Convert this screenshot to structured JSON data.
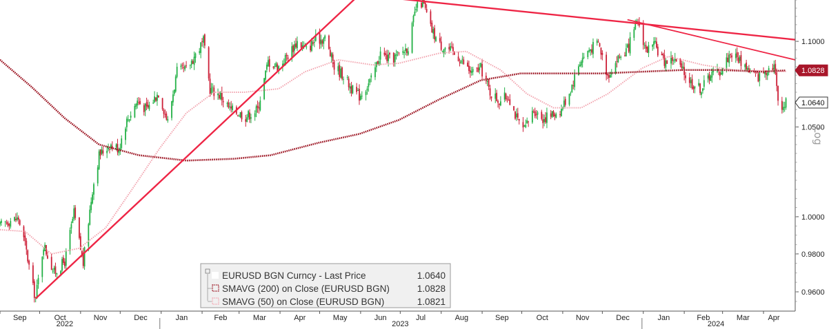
{
  "chart_data": {
    "type": "candlestick",
    "scale": "log",
    "scale_label": "Log",
    "ylim": [
      0.95,
      1.125
    ],
    "y_ticks": [
      0.96,
      0.98,
      1.0,
      1.05,
      1.1
    ],
    "y_tick_labels": [
      "0.9600",
      "0.9800",
      "1.0000",
      "1.0500",
      "1.1000"
    ],
    "x_start": "2022-09-01",
    "x_end": "2024-04-25",
    "month_ticks": [
      {
        "label": "Sep",
        "date": "2022-09-01"
      },
      {
        "label": "Oct",
        "date": "2022-10-01"
      },
      {
        "label": "Nov",
        "date": "2022-11-01"
      },
      {
        "label": "Dec",
        "date": "2022-12-01"
      },
      {
        "label": "Jan",
        "date": "2023-01-01"
      },
      {
        "label": "Feb",
        "date": "2023-02-01"
      },
      {
        "label": "Mar",
        "date": "2023-03-01"
      },
      {
        "label": "Apr",
        "date": "2023-04-01"
      },
      {
        "label": "May",
        "date": "2023-05-01"
      },
      {
        "label": "Jun",
        "date": "2023-06-01"
      },
      {
        "label": "Jul",
        "date": "2023-07-01"
      },
      {
        "label": "Aug",
        "date": "2023-08-01"
      },
      {
        "label": "Sep",
        "date": "2023-09-01"
      },
      {
        "label": "Oct",
        "date": "2023-10-01"
      },
      {
        "label": "Nov",
        "date": "2023-11-01"
      },
      {
        "label": "Dec",
        "date": "2023-12-01"
      },
      {
        "label": "Jan",
        "date": "2024-01-01"
      },
      {
        "label": "Feb",
        "date": "2024-02-01"
      },
      {
        "label": "Mar",
        "date": "2024-03-01"
      },
      {
        "label": "Apr",
        "date": "2024-04-01"
      }
    ],
    "year_labels": [
      {
        "label": "2022",
        "date": "2022-10-20"
      },
      {
        "label": "2023",
        "date": "2023-07-01"
      },
      {
        "label": "2024",
        "date": "2024-02-25"
      }
    ],
    "year_dividers": [
      "2022-12-31",
      "2023-12-31"
    ],
    "price_path": [
      [
        "2022-09-01",
        0.995
      ],
      [
        "2022-09-08",
        0.998
      ],
      [
        "2022-09-15",
        0.999
      ],
      [
        "2022-09-20",
        0.985
      ],
      [
        "2022-09-26",
        0.962
      ],
      [
        "2022-09-28",
        0.957
      ],
      [
        "2022-10-04",
        0.985
      ],
      [
        "2022-10-12",
        0.97
      ],
      [
        "2022-10-20",
        0.976
      ],
      [
        "2022-10-27",
        1.002
      ],
      [
        "2022-11-03",
        0.975
      ],
      [
        "2022-11-10",
        1.015
      ],
      [
        "2022-11-15",
        1.034
      ],
      [
        "2022-11-23",
        1.04
      ],
      [
        "2022-11-30",
        1.038
      ],
      [
        "2022-12-05",
        1.052
      ],
      [
        "2022-12-14",
        1.065
      ],
      [
        "2022-12-21",
        1.06
      ],
      [
        "2022-12-30",
        1.07
      ],
      [
        "2023-01-06",
        1.053
      ],
      [
        "2023-01-13",
        1.082
      ],
      [
        "2023-01-20",
        1.083
      ],
      [
        "2023-01-26",
        1.091
      ],
      [
        "2023-02-02",
        1.1
      ],
      [
        "2023-02-07",
        1.072
      ],
      [
        "2023-02-15",
        1.068
      ],
      [
        "2023-02-22",
        1.06
      ],
      [
        "2023-03-01",
        1.058
      ],
      [
        "2023-03-06",
        1.056
      ],
      [
        "2023-03-15",
        1.06
      ],
      [
        "2023-03-23",
        1.088
      ],
      [
        "2023-03-31",
        1.085
      ],
      [
        "2023-04-07",
        1.092
      ],
      [
        "2023-04-14",
        1.1
      ],
      [
        "2023-04-21",
        1.095
      ],
      [
        "2023-04-28",
        1.101
      ],
      [
        "2023-05-05",
        1.102
      ],
      [
        "2023-05-12",
        1.085
      ],
      [
        "2023-05-19",
        1.08
      ],
      [
        "2023-05-26",
        1.071
      ],
      [
        "2023-05-31",
        1.068
      ],
      [
        "2023-06-09",
        1.077
      ],
      [
        "2023-06-16",
        1.093
      ],
      [
        "2023-06-23",
        1.089
      ],
      [
        "2023-06-30",
        1.092
      ],
      [
        "2023-07-07",
        1.097
      ],
      [
        "2023-07-13",
        1.12
      ],
      [
        "2023-07-18",
        1.124
      ],
      [
        "2023-07-24",
        1.108
      ],
      [
        "2023-07-31",
        1.098
      ],
      [
        "2023-08-07",
        1.095
      ],
      [
        "2023-08-15",
        1.09
      ],
      [
        "2023-08-24",
        1.081
      ],
      [
        "2023-08-31",
        1.084
      ],
      [
        "2023-09-07",
        1.07
      ],
      [
        "2023-09-14",
        1.065
      ],
      [
        "2023-09-21",
        1.068
      ],
      [
        "2023-09-28",
        1.053
      ],
      [
        "2023-10-03",
        1.048
      ],
      [
        "2023-10-10",
        1.06
      ],
      [
        "2023-10-17",
        1.055
      ],
      [
        "2023-10-24",
        1.057
      ],
      [
        "2023-10-31",
        1.06
      ],
      [
        "2023-11-07",
        1.072
      ],
      [
        "2023-11-14",
        1.088
      ],
      [
        "2023-11-21",
        1.095
      ],
      [
        "2023-11-28",
        1.099
      ],
      [
        "2023-12-05",
        1.08
      ],
      [
        "2023-12-13",
        1.09
      ],
      [
        "2023-12-20",
        1.095
      ],
      [
        "2023-12-28",
        1.112
      ],
      [
        "2024-01-03",
        1.095
      ],
      [
        "2024-01-10",
        1.097
      ],
      [
        "2024-01-17",
        1.088
      ],
      [
        "2024-01-24",
        1.09
      ],
      [
        "2024-01-31",
        1.082
      ],
      [
        "2024-02-07",
        1.075
      ],
      [
        "2024-02-14",
        1.072
      ],
      [
        "2024-02-21",
        1.081
      ],
      [
        "2024-02-28",
        1.082
      ],
      [
        "2024-03-07",
        1.093
      ],
      [
        "2024-03-14",
        1.089
      ],
      [
        "2024-03-21",
        1.083
      ],
      [
        "2024-03-28",
        1.079
      ],
      [
        "2024-04-04",
        1.084
      ],
      [
        "2024-04-09",
        1.086
      ],
      [
        "2024-04-12",
        1.066
      ],
      [
        "2024-04-16",
        1.062
      ],
      [
        "2024-04-18",
        1.064
      ]
    ],
    "sma200_path": [
      [
        "2022-09-01",
        1.089
      ],
      [
        "2022-09-25",
        1.073
      ],
      [
        "2022-10-20",
        1.055
      ],
      [
        "2022-11-15",
        1.04
      ],
      [
        "2022-12-15",
        1.034
      ],
      [
        "2023-01-20",
        1.031
      ],
      [
        "2023-02-25",
        1.032
      ],
      [
        "2023-03-25",
        1.034
      ],
      [
        "2023-04-30",
        1.041
      ],
      [
        "2023-05-31",
        1.046
      ],
      [
        "2023-06-30",
        1.054
      ],
      [
        "2023-07-31",
        1.066
      ],
      [
        "2023-08-31",
        1.077
      ],
      [
        "2023-09-30",
        1.081
      ],
      [
        "2023-10-31",
        1.081
      ],
      [
        "2023-11-30",
        1.081
      ],
      [
        "2023-12-31",
        1.082
      ],
      [
        "2024-01-31",
        1.083
      ],
      [
        "2024-02-29",
        1.083
      ],
      [
        "2024-03-31",
        1.082
      ],
      [
        "2024-04-18",
        1.0828
      ]
    ],
    "sma50_path": [
      [
        "2022-09-01",
        0.993
      ],
      [
        "2022-09-20",
        0.992
      ],
      [
        "2022-10-10",
        0.98
      ],
      [
        "2022-10-31",
        0.983
      ],
      [
        "2022-11-20",
        0.994
      ],
      [
        "2022-12-10",
        1.015
      ],
      [
        "2022-12-31",
        1.038
      ],
      [
        "2023-01-20",
        1.058
      ],
      [
        "2023-02-10",
        1.07
      ],
      [
        "2023-03-05",
        1.07
      ],
      [
        "2023-03-31",
        1.072
      ],
      [
        "2023-04-20",
        1.082
      ],
      [
        "2023-05-15",
        1.089
      ],
      [
        "2023-06-10",
        1.086
      ],
      [
        "2023-06-30",
        1.087
      ],
      [
        "2023-07-31",
        1.093
      ],
      [
        "2023-08-20",
        1.094
      ],
      [
        "2023-09-15",
        1.083
      ],
      [
        "2023-10-05",
        1.069
      ],
      [
        "2023-10-25",
        1.061
      ],
      [
        "2023-11-15",
        1.061
      ],
      [
        "2023-12-05",
        1.069
      ],
      [
        "2023-12-31",
        1.084
      ],
      [
        "2024-01-20",
        1.091
      ],
      [
        "2024-02-15",
        1.086
      ],
      [
        "2024-03-10",
        1.083
      ],
      [
        "2024-04-18",
        1.0821
      ]
    ],
    "trendlines": [
      {
        "from": [
          "2022-09-28",
          0.9565
        ],
        "to": [
          "2023-11-05",
          1.255
        ]
      },
      {
        "from": [
          "2023-06-15",
          1.127
        ],
        "to": [
          "2024-04-25",
          1.101
        ]
      },
      {
        "from": [
          "2023-12-20",
          1.113
        ],
        "to": [
          "2024-04-25",
          1.089
        ]
      }
    ],
    "price_tags": [
      {
        "value": 1.0828,
        "label": "1.0828",
        "style": "filled"
      },
      {
        "value": 1.064,
        "label": "1.0640",
        "style": "outlined"
      }
    ],
    "legend": [
      {
        "marker": "solid",
        "text": "EURUSD BGN Curncy - Last Price",
        "value": "1.0640"
      },
      {
        "marker": "sma200",
        "text": "SMAVG (200)  on Close (EURUSD BGN)",
        "value": "1.0828"
      },
      {
        "marker": "sma50",
        "text": "SMAVG (50)  on Close (EURUSD BGN)",
        "value": "1.0821"
      }
    ],
    "colors": {
      "up_candle": "#22b045",
      "down_candle": "#cc1e36",
      "sma200": "#9a0f1d",
      "sma50": "#f2a3ae",
      "trendline": "#ee2545",
      "price_tag_fill": "#a8162a"
    },
    "legend_position": "bottom-center"
  }
}
